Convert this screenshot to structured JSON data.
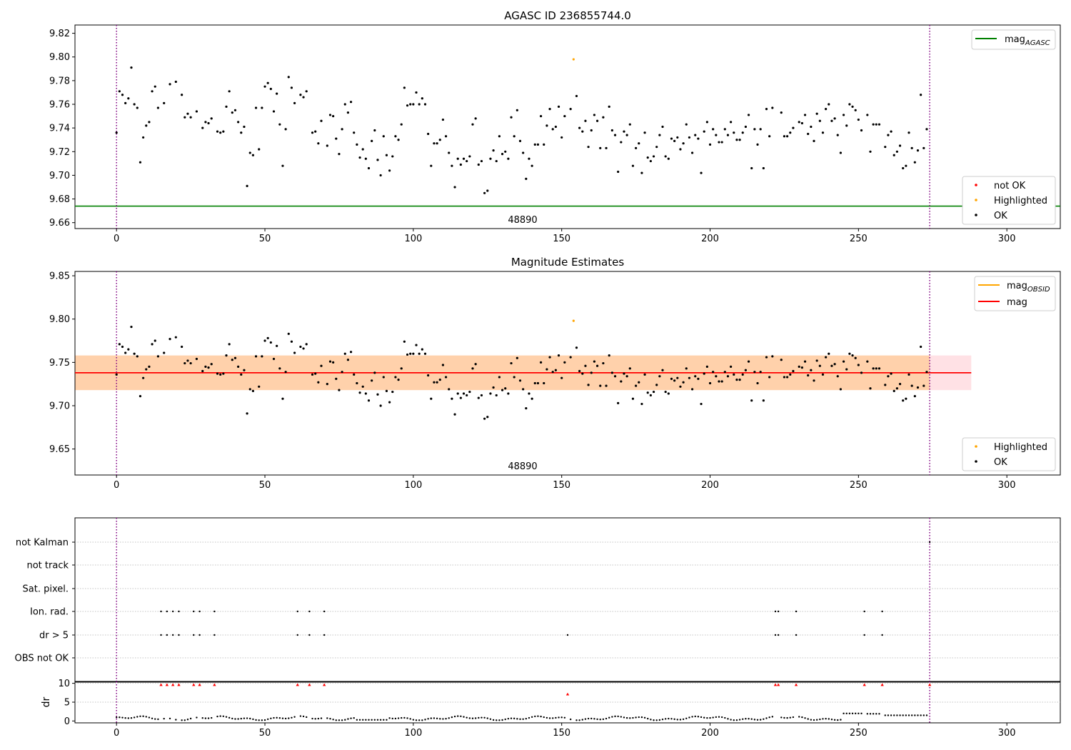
{
  "chart_data": [
    {
      "type": "scatter",
      "title": "AGASC ID 236855744.0",
      "annotation": "48890",
      "xlim": [
        -14,
        318
      ],
      "ylim": [
        9.655,
        9.827
      ],
      "xticks": [
        0,
        50,
        100,
        150,
        200,
        250,
        300
      ],
      "yticks": [
        9.66,
        9.68,
        9.7,
        9.72,
        9.74,
        9.76,
        9.78,
        9.8,
        9.82
      ],
      "ytick_labels": [
        "9.66",
        "9.68",
        "9.70",
        "9.72",
        "9.74",
        "9.76",
        "9.78",
        "9.80",
        "9.82"
      ],
      "vlines": [
        0,
        274
      ],
      "hlines": [
        {
          "name": "mag_AGASC",
          "y": 9.674,
          "color": "#008000"
        }
      ],
      "legends": [
        {
          "position": "top-right",
          "entries": [
            {
              "label": "mag",
              "sub": "AGASC",
              "kind": "line",
              "color": "#008000"
            }
          ]
        },
        {
          "position": "bottom-right",
          "entries": [
            {
              "label": "not OK",
              "kind": "marker",
              "color": "#ff0000"
            },
            {
              "label": "Highlighted",
              "kind": "marker",
              "color": "#ffa500"
            },
            {
              "label": "OK",
              "kind": "marker",
              "color": "#000000"
            }
          ]
        }
      ],
      "series": [
        {
          "name": "Highlighted",
          "color": "#ffa500",
          "points": [
            [
              154,
              9.798
            ]
          ]
        },
        {
          "name": "OK",
          "color": "#000000",
          "source": "shared_ok_points"
        }
      ]
    },
    {
      "type": "scatter",
      "title": "Magnitude Estimates",
      "annotation": "48890",
      "xlim": [
        -14,
        318
      ],
      "ylim": [
        9.62,
        9.855
      ],
      "xticks": [
        0,
        50,
        100,
        150,
        200,
        250,
        300
      ],
      "yticks": [
        9.65,
        9.7,
        9.75,
        9.8,
        9.85
      ],
      "ytick_labels": [
        "9.65",
        "9.70",
        "9.75",
        "9.80",
        "9.85"
      ],
      "vlines": [
        0,
        274
      ],
      "hlines": [
        {
          "name": "mag",
          "y": 9.738,
          "color": "#ff0000"
        }
      ],
      "bands": [
        {
          "y0": 9.718,
          "y1": 9.758,
          "x0": -14,
          "x1": 288,
          "color": "#ff9aa8",
          "opacity": 0.3
        },
        {
          "y0": 9.718,
          "y1": 9.758,
          "x0": -14,
          "x1": 274,
          "color": "#ffa500",
          "opacity": 0.25
        }
      ],
      "legends": [
        {
          "position": "top-right",
          "entries": [
            {
              "label": "mag",
              "sub": "OBSID",
              "kind": "line",
              "color": "#ffa500"
            },
            {
              "label": "mag",
              "kind": "line",
              "color": "#ff0000"
            }
          ]
        },
        {
          "position": "bottom-right",
          "entries": [
            {
              "label": "Highlighted",
              "kind": "marker",
              "color": "#ffa500"
            },
            {
              "label": "OK",
              "kind": "marker",
              "color": "#000000"
            }
          ]
        }
      ],
      "series": [
        {
          "name": "Highlighted",
          "color": "#ffa500",
          "points": [
            [
              154,
              9.798
            ]
          ]
        },
        {
          "name": "OK",
          "color": "#000000",
          "source": "shared_ok_points"
        }
      ]
    },
    {
      "type": "scatter",
      "title": "",
      "xlim": [
        -14,
        318
      ],
      "categories": [
        "OBS not OK",
        "dr > 5",
        "Ion. rad.",
        "Sat. pixel.",
        "not track",
        "not Kalman"
      ],
      "flags": {
        "dr > 5": [
          15,
          17,
          19,
          21,
          26,
          28,
          33,
          61,
          65,
          70,
          152,
          222,
          223,
          229,
          252,
          258
        ],
        "Ion. rad.": [
          15,
          17,
          19,
          21,
          26,
          28,
          33,
          61,
          65,
          70,
          222,
          223,
          229,
          252,
          258
        ],
        "not Kalman": [
          274
        ]
      }
    },
    {
      "type": "scatter",
      "title": "",
      "ylabel": "dr",
      "xlim": [
        -14,
        318
      ],
      "ylim": [
        -0.5,
        10.5
      ],
      "xticks": [
        0,
        50,
        100,
        150,
        200,
        250,
        300
      ],
      "yticks": [
        0,
        5,
        10
      ],
      "ytick_labels": [
        "0",
        "5",
        "10"
      ],
      "vlines": [
        0,
        274
      ],
      "outliers_red": [
        [
          15,
          9.6
        ],
        [
          17,
          9.6
        ],
        [
          19,
          9.6
        ],
        [
          21,
          9.6
        ],
        [
          26,
          9.6
        ],
        [
          28,
          9.6
        ],
        [
          33,
          9.6
        ],
        [
          61,
          9.6
        ],
        [
          65,
          9.6
        ],
        [
          70,
          9.6
        ],
        [
          152,
          7.1
        ],
        [
          222,
          9.6
        ],
        [
          223,
          9.6
        ],
        [
          229,
          9.6
        ],
        [
          252,
          9.6
        ],
        [
          258,
          9.6
        ],
        [
          274,
          9.6
        ]
      ]
    }
  ],
  "shared_ok_points": [
    [
      0,
      9.736
    ],
    [
      1,
      9.771
    ],
    [
      2,
      9.768
    ],
    [
      3,
      9.761
    ],
    [
      4,
      9.765
    ],
    [
      5,
      9.791
    ],
    [
      6,
      9.76
    ],
    [
      7,
      9.757
    ],
    [
      8,
      9.711
    ],
    [
      9,
      9.732
    ],
    [
      10,
      9.742
    ],
    [
      11,
      9.745
    ],
    [
      12,
      9.771
    ],
    [
      13,
      9.775
    ],
    [
      14,
      9.757
    ],
    [
      16,
      9.761
    ],
    [
      18,
      9.777
    ],
    [
      20,
      9.779
    ],
    [
      22,
      9.768
    ],
    [
      23,
      9.749
    ],
    [
      24,
      9.752
    ],
    [
      25,
      9.749
    ],
    [
      27,
      9.754
    ],
    [
      29,
      9.74
    ],
    [
      30,
      9.745
    ],
    [
      31,
      9.744
    ],
    [
      32,
      9.748
    ],
    [
      34,
      9.737
    ],
    [
      35,
      9.736
    ],
    [
      36,
      9.737
    ],
    [
      37,
      9.758
    ],
    [
      38,
      9.771
    ],
    [
      39,
      9.753
    ],
    [
      40,
      9.755
    ],
    [
      41,
      9.745
    ],
    [
      42,
      9.736
    ],
    [
      43,
      9.741
    ],
    [
      44,
      9.691
    ],
    [
      45,
      9.719
    ],
    [
      46,
      9.717
    ],
    [
      47,
      9.757
    ],
    [
      48,
      9.722
    ],
    [
      49,
      9.757
    ],
    [
      50,
      9.775
    ],
    [
      51,
      9.778
    ],
    [
      52,
      9.773
    ],
    [
      53,
      9.754
    ],
    [
      54,
      9.769
    ],
    [
      55,
      9.743
    ],
    [
      56,
      9.708
    ],
    [
      57,
      9.739
    ],
    [
      58,
      9.783
    ],
    [
      59,
      9.774
    ],
    [
      60,
      9.761
    ],
    [
      62,
      9.768
    ],
    [
      63,
      9.766
    ],
    [
      64,
      9.771
    ],
    [
      66,
      9.736
    ],
    [
      67,
      9.737
    ],
    [
      68,
      9.727
    ],
    [
      69,
      9.746
    ],
    [
      71,
      9.725
    ],
    [
      72,
      9.751
    ],
    [
      73,
      9.75
    ],
    [
      74,
      9.731
    ],
    [
      75,
      9.718
    ],
    [
      76,
      9.739
    ],
    [
      77,
      9.76
    ],
    [
      78,
      9.753
    ],
    [
      79,
      9.762
    ],
    [
      80,
      9.736
    ],
    [
      81,
      9.726
    ],
    [
      82,
      9.715
    ],
    [
      83,
      9.722
    ],
    [
      84,
      9.714
    ],
    [
      85,
      9.706
    ],
    [
      86,
      9.729
    ],
    [
      87,
      9.738
    ],
    [
      88,
      9.713
    ],
    [
      89,
      9.7
    ],
    [
      90,
      9.733
    ],
    [
      91,
      9.717
    ],
    [
      92,
      9.704
    ],
    [
      93,
      9.716
    ],
    [
      94,
      9.733
    ],
    [
      95,
      9.73
    ],
    [
      96,
      9.743
    ],
    [
      97,
      9.774
    ],
    [
      98,
      9.759
    ],
    [
      99,
      9.76
    ],
    [
      100,
      9.76
    ],
    [
      101,
      9.77
    ],
    [
      102,
      9.76
    ],
    [
      103,
      9.765
    ],
    [
      104,
      9.76
    ],
    [
      105,
      9.735
    ],
    [
      106,
      9.708
    ],
    [
      107,
      9.727
    ],
    [
      108,
      9.727
    ],
    [
      109,
      9.73
    ],
    [
      110,
      9.747
    ],
    [
      111,
      9.733
    ],
    [
      112,
      9.719
    ],
    [
      113,
      9.708
    ],
    [
      114,
      9.69
    ],
    [
      115,
      9.714
    ],
    [
      116,
      9.709
    ],
    [
      117,
      9.714
    ],
    [
      118,
      9.712
    ],
    [
      119,
      9.716
    ],
    [
      120,
      9.743
    ],
    [
      121,
      9.748
    ],
    [
      122,
      9.709
    ],
    [
      123,
      9.712
    ],
    [
      124,
      9.685
    ],
    [
      125,
      9.687
    ],
    [
      126,
      9.714
    ],
    [
      127,
      9.721
    ],
    [
      128,
      9.712
    ],
    [
      129,
      9.733
    ],
    [
      130,
      9.718
    ],
    [
      131,
      9.72
    ],
    [
      132,
      9.714
    ],
    [
      133,
      9.749
    ],
    [
      134,
      9.733
    ],
    [
      135,
      9.755
    ],
    [
      136,
      9.729
    ],
    [
      137,
      9.719
    ],
    [
      138,
      9.697
    ],
    [
      139,
      9.714
    ],
    [
      140,
      9.708
    ],
    [
      141,
      9.726
    ],
    [
      142,
      9.726
    ],
    [
      143,
      9.75
    ],
    [
      144,
      9.726
    ],
    [
      145,
      9.742
    ],
    [
      146,
      9.756
    ],
    [
      147,
      9.739
    ],
    [
      148,
      9.741
    ],
    [
      149,
      9.758
    ],
    [
      150,
      9.732
    ],
    [
      151,
      9.75
    ],
    [
      153,
      9.756
    ],
    [
      155,
      9.767
    ],
    [
      156,
      9.74
    ],
    [
      157,
      9.737
    ],
    [
      158,
      9.746
    ],
    [
      159,
      9.724
    ],
    [
      160,
      9.738
    ],
    [
      161,
      9.751
    ],
    [
      162,
      9.746
    ],
    [
      163,
      9.723
    ],
    [
      164,
      9.749
    ],
    [
      165,
      9.723
    ],
    [
      166,
      9.758
    ],
    [
      167,
      9.738
    ],
    [
      168,
      9.734
    ],
    [
      169,
      9.703
    ],
    [
      170,
      9.728
    ],
    [
      171,
      9.737
    ],
    [
      172,
      9.734
    ],
    [
      173,
      9.743
    ],
    [
      174,
      9.708
    ],
    [
      175,
      9.723
    ],
    [
      176,
      9.727
    ],
    [
      177,
      9.702
    ],
    [
      178,
      9.736
    ],
    [
      179,
      9.715
    ],
    [
      180,
      9.712
    ],
    [
      181,
      9.716
    ],
    [
      182,
      9.724
    ],
    [
      183,
      9.734
    ],
    [
      184,
      9.741
    ],
    [
      185,
      9.716
    ],
    [
      186,
      9.714
    ],
    [
      187,
      9.731
    ],
    [
      188,
      9.729
    ],
    [
      189,
      9.732
    ],
    [
      190,
      9.722
    ],
    [
      191,
      9.727
    ],
    [
      192,
      9.743
    ],
    [
      193,
      9.732
    ],
    [
      194,
      9.719
    ],
    [
      195,
      9.734
    ],
    [
      196,
      9.731
    ],
    [
      197,
      9.702
    ],
    [
      198,
      9.737
    ],
    [
      199,
      9.745
    ],
    [
      200,
      9.726
    ],
    [
      201,
      9.739
    ],
    [
      202,
      9.734
    ],
    [
      203,
      9.728
    ],
    [
      204,
      9.728
    ],
    [
      205,
      9.739
    ],
    [
      206,
      9.734
    ],
    [
      207,
      9.745
    ],
    [
      208,
      9.736
    ],
    [
      209,
      9.73
    ],
    [
      210,
      9.73
    ],
    [
      211,
      9.736
    ],
    [
      212,
      9.741
    ],
    [
      213,
      9.751
    ],
    [
      214,
      9.706
    ],
    [
      215,
      9.739
    ],
    [
      216,
      9.726
    ],
    [
      217,
      9.739
    ],
    [
      218,
      9.706
    ],
    [
      219,
      9.756
    ],
    [
      220,
      9.733
    ],
    [
      221,
      9.757
    ],
    [
      224,
      9.753
    ],
    [
      225,
      9.733
    ],
    [
      226,
      9.733
    ],
    [
      227,
      9.736
    ],
    [
      228,
      9.74
    ],
    [
      230,
      9.745
    ],
    [
      231,
      9.744
    ],
    [
      232,
      9.751
    ],
    [
      233,
      9.735
    ],
    [
      234,
      9.741
    ],
    [
      235,
      9.729
    ],
    [
      236,
      9.752
    ],
    [
      237,
      9.746
    ],
    [
      238,
      9.736
    ],
    [
      239,
      9.756
    ],
    [
      240,
      9.76
    ],
    [
      241,
      9.746
    ],
    [
      242,
      9.748
    ],
    [
      243,
      9.734
    ],
    [
      244,
      9.719
    ],
    [
      245,
      9.751
    ],
    [
      246,
      9.742
    ],
    [
      247,
      9.76
    ],
    [
      248,
      9.758
    ],
    [
      249,
      9.755
    ],
    [
      250,
      9.747
    ],
    [
      251,
      9.738
    ],
    [
      253,
      9.751
    ],
    [
      254,
      9.72
    ],
    [
      255,
      9.743
    ],
    [
      256,
      9.743
    ],
    [
      257,
      9.743
    ],
    [
      259,
      9.724
    ],
    [
      260,
      9.734
    ],
    [
      261,
      9.737
    ],
    [
      262,
      9.717
    ],
    [
      263,
      9.72
    ],
    [
      264,
      9.725
    ],
    [
      265,
      9.706
    ],
    [
      266,
      9.708
    ],
    [
      267,
      9.736
    ],
    [
      268,
      9.723
    ],
    [
      269,
      9.711
    ],
    [
      270,
      9.721
    ],
    [
      271,
      9.768
    ],
    [
      272,
      9.723
    ],
    [
      273,
      9.739
    ]
  ]
}
